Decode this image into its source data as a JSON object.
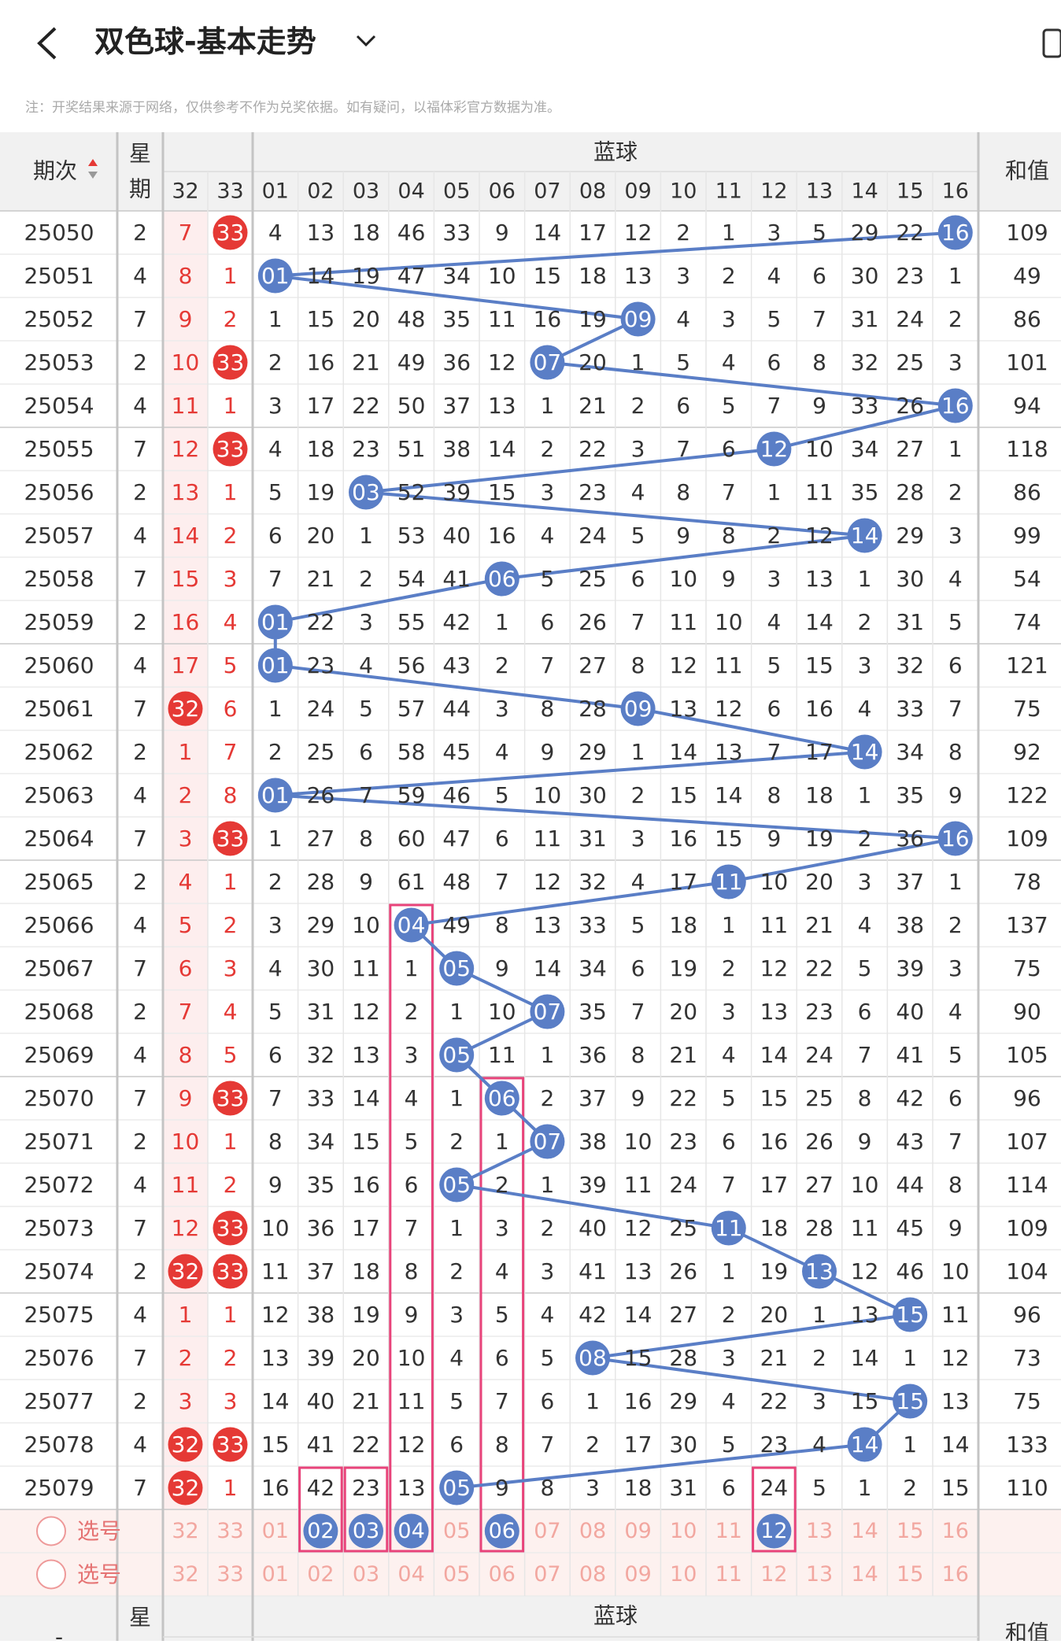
{
  "header": {
    "title": "双色球-基本走势"
  },
  "note": "注：开奖结果来源于网络，仅供参考不作为兑奖依据。如有疑问，以福体彩官方数据为准。",
  "table": {
    "columns": {
      "period": "期次",
      "week": [
        "星",
        "期"
      ],
      "red": [
        "32",
        "33"
      ],
      "blue_group": "蓝球",
      "blue": [
        "01",
        "02",
        "03",
        "04",
        "05",
        "06",
        "07",
        "08",
        "09",
        "10",
        "11",
        "12",
        "13",
        "14",
        "15",
        "16"
      ],
      "sum": "和值"
    },
    "rows": [
      {
        "period": "25050",
        "week": "2",
        "cells": [
          "7",
          "33",
          "4",
          "13",
          "18",
          "46",
          "33",
          "9",
          "14",
          "17",
          "12",
          "2",
          "1",
          "3",
          "5",
          "29",
          "22",
          "16"
        ],
        "sum": "109",
        "balls": [
          1,
          17
        ]
      },
      {
        "period": "25051",
        "week": "4",
        "cells": [
          "8",
          "1",
          "01",
          "14",
          "19",
          "47",
          "34",
          "10",
          "15",
          "18",
          "13",
          "3",
          "2",
          "4",
          "6",
          "30",
          "23",
          "1"
        ],
        "sum": "49",
        "balls": [
          2
        ]
      },
      {
        "period": "25052",
        "week": "7",
        "cells": [
          "9",
          "2",
          "1",
          "15",
          "20",
          "48",
          "35",
          "11",
          "16",
          "19",
          "09",
          "4",
          "3",
          "5",
          "7",
          "31",
          "24",
          "2"
        ],
        "sum": "86",
        "balls": [
          10
        ]
      },
      {
        "period": "25053",
        "week": "2",
        "cells": [
          "10",
          "33",
          "2",
          "16",
          "21",
          "49",
          "36",
          "12",
          "07",
          "20",
          "1",
          "5",
          "4",
          "6",
          "8",
          "32",
          "25",
          "3"
        ],
        "sum": "101",
        "balls": [
          1,
          8
        ]
      },
      {
        "period": "25054",
        "week": "4",
        "cells": [
          "11",
          "1",
          "3",
          "17",
          "22",
          "50",
          "37",
          "13",
          "1",
          "21",
          "2",
          "6",
          "5",
          "7",
          "9",
          "33",
          "26",
          "16"
        ],
        "sum": "94",
        "balls": [
          17
        ]
      },
      {
        "period": "25055",
        "week": "7",
        "cells": [
          "12",
          "33",
          "4",
          "18",
          "23",
          "51",
          "38",
          "14",
          "2",
          "22",
          "3",
          "7",
          "6",
          "12",
          "10",
          "34",
          "27",
          "1"
        ],
        "sum": "118",
        "balls": [
          1,
          13
        ]
      },
      {
        "period": "25056",
        "week": "2",
        "cells": [
          "13",
          "1",
          "5",
          "19",
          "03",
          "52",
          "39",
          "15",
          "3",
          "23",
          "4",
          "8",
          "7",
          "1",
          "11",
          "35",
          "28",
          "2"
        ],
        "sum": "86",
        "balls": [
          4
        ]
      },
      {
        "period": "25057",
        "week": "4",
        "cells": [
          "14",
          "2",
          "6",
          "20",
          "1",
          "53",
          "40",
          "16",
          "4",
          "24",
          "5",
          "9",
          "8",
          "2",
          "12",
          "14",
          "29",
          "3"
        ],
        "sum": "99",
        "balls": [
          15
        ]
      },
      {
        "period": "25058",
        "week": "7",
        "cells": [
          "15",
          "3",
          "7",
          "21",
          "2",
          "54",
          "41",
          "06",
          "5",
          "25",
          "6",
          "10",
          "9",
          "3",
          "13",
          "1",
          "30",
          "4"
        ],
        "sum": "54",
        "balls": [
          7
        ]
      },
      {
        "period": "25059",
        "week": "2",
        "cells": [
          "16",
          "4",
          "01",
          "22",
          "3",
          "55",
          "42",
          "1",
          "6",
          "26",
          "7",
          "11",
          "10",
          "4",
          "14",
          "2",
          "31",
          "5"
        ],
        "sum": "74",
        "balls": [
          2
        ]
      },
      {
        "period": "25060",
        "week": "4",
        "cells": [
          "17",
          "5",
          "01",
          "23",
          "4",
          "56",
          "43",
          "2",
          "7",
          "27",
          "8",
          "12",
          "11",
          "5",
          "15",
          "3",
          "32",
          "6"
        ],
        "sum": "121",
        "balls": [
          2
        ]
      },
      {
        "period": "25061",
        "week": "7",
        "cells": [
          "32",
          "6",
          "1",
          "24",
          "5",
          "57",
          "44",
          "3",
          "8",
          "28",
          "09",
          "13",
          "12",
          "6",
          "16",
          "4",
          "33",
          "7"
        ],
        "sum": "75",
        "balls": [
          0,
          10
        ]
      },
      {
        "period": "25062",
        "week": "2",
        "cells": [
          "1",
          "7",
          "2",
          "25",
          "6",
          "58",
          "45",
          "4",
          "9",
          "29",
          "1",
          "14",
          "13",
          "7",
          "17",
          "14",
          "34",
          "8"
        ],
        "sum": "92",
        "balls": [
          15
        ]
      },
      {
        "period": "25063",
        "week": "4",
        "cells": [
          "2",
          "8",
          "01",
          "26",
          "7",
          "59",
          "46",
          "5",
          "10",
          "30",
          "2",
          "15",
          "14",
          "8",
          "18",
          "1",
          "35",
          "9"
        ],
        "sum": "122",
        "balls": [
          2
        ]
      },
      {
        "period": "25064",
        "week": "7",
        "cells": [
          "3",
          "33",
          "1",
          "27",
          "8",
          "60",
          "47",
          "6",
          "11",
          "31",
          "3",
          "16",
          "15",
          "9",
          "19",
          "2",
          "36",
          "16"
        ],
        "sum": "109",
        "balls": [
          1,
          17
        ]
      },
      {
        "period": "25065",
        "week": "2",
        "cells": [
          "4",
          "1",
          "2",
          "28",
          "9",
          "61",
          "48",
          "7",
          "12",
          "32",
          "4",
          "17",
          "11",
          "10",
          "20",
          "3",
          "37",
          "1"
        ],
        "sum": "78",
        "balls": [
          12
        ]
      },
      {
        "period": "25066",
        "week": "4",
        "cells": [
          "5",
          "2",
          "3",
          "29",
          "10",
          "04",
          "49",
          "8",
          "13",
          "33",
          "5",
          "18",
          "1",
          "11",
          "21",
          "4",
          "38",
          "2"
        ],
        "sum": "137",
        "balls": [
          5
        ]
      },
      {
        "period": "25067",
        "week": "7",
        "cells": [
          "6",
          "3",
          "4",
          "30",
          "11",
          "1",
          "05",
          "9",
          "14",
          "34",
          "6",
          "19",
          "2",
          "12",
          "22",
          "5",
          "39",
          "3"
        ],
        "sum": "75",
        "balls": [
          6
        ]
      },
      {
        "period": "25068",
        "week": "2",
        "cells": [
          "7",
          "4",
          "5",
          "31",
          "12",
          "2",
          "1",
          "10",
          "07",
          "35",
          "7",
          "20",
          "3",
          "13",
          "23",
          "6",
          "40",
          "4"
        ],
        "sum": "90",
        "balls": [
          8
        ]
      },
      {
        "period": "25069",
        "week": "4",
        "cells": [
          "8",
          "5",
          "6",
          "32",
          "13",
          "3",
          "05",
          "11",
          "1",
          "36",
          "8",
          "21",
          "4",
          "14",
          "24",
          "7",
          "41",
          "5"
        ],
        "sum": "105",
        "balls": [
          6
        ]
      },
      {
        "period": "25070",
        "week": "7",
        "cells": [
          "9",
          "33",
          "7",
          "33",
          "14",
          "4",
          "1",
          "06",
          "2",
          "37",
          "9",
          "22",
          "5",
          "15",
          "25",
          "8",
          "42",
          "6"
        ],
        "sum": "96",
        "balls": [
          1,
          7
        ]
      },
      {
        "period": "25071",
        "week": "2",
        "cells": [
          "10",
          "1",
          "8",
          "34",
          "15",
          "5",
          "2",
          "1",
          "07",
          "38",
          "10",
          "23",
          "6",
          "16",
          "26",
          "9",
          "43",
          "7"
        ],
        "sum": "107",
        "balls": [
          8
        ]
      },
      {
        "period": "25072",
        "week": "4",
        "cells": [
          "11",
          "2",
          "9",
          "35",
          "16",
          "6",
          "05",
          "2",
          "1",
          "39",
          "11",
          "24",
          "7",
          "17",
          "27",
          "10",
          "44",
          "8"
        ],
        "sum": "114",
        "balls": [
          6
        ]
      },
      {
        "period": "25073",
        "week": "7",
        "cells": [
          "12",
          "33",
          "10",
          "36",
          "17",
          "7",
          "1",
          "3",
          "2",
          "40",
          "12",
          "25",
          "11",
          "18",
          "28",
          "11",
          "45",
          "9"
        ],
        "sum": "109",
        "balls": [
          1,
          12
        ]
      },
      {
        "period": "25074",
        "week": "2",
        "cells": [
          "32",
          "33",
          "11",
          "37",
          "18",
          "8",
          "2",
          "4",
          "3",
          "41",
          "13",
          "26",
          "1",
          "19",
          "13",
          "12",
          "46",
          "10"
        ],
        "sum": "104",
        "balls": [
          0,
          1,
          14
        ]
      },
      {
        "period": "25075",
        "week": "4",
        "cells": [
          "1",
          "1",
          "12",
          "38",
          "19",
          "9",
          "3",
          "5",
          "4",
          "42",
          "14",
          "27",
          "2",
          "20",
          "1",
          "13",
          "15",
          "11"
        ],
        "sum": "96",
        "balls": [
          16
        ]
      },
      {
        "period": "25076",
        "week": "7",
        "cells": [
          "2",
          "2",
          "13",
          "39",
          "20",
          "10",
          "4",
          "6",
          "5",
          "08",
          "15",
          "28",
          "3",
          "21",
          "2",
          "14",
          "1",
          "12"
        ],
        "sum": "73",
        "balls": [
          9
        ]
      },
      {
        "period": "25077",
        "week": "2",
        "cells": [
          "3",
          "3",
          "14",
          "40",
          "21",
          "11",
          "5",
          "7",
          "6",
          "1",
          "16",
          "29",
          "4",
          "22",
          "3",
          "15",
          "15",
          "13"
        ],
        "sum": "75",
        "balls": [
          16
        ]
      },
      {
        "period": "25078",
        "week": "4",
        "cells": [
          "32",
          "33",
          "15",
          "41",
          "22",
          "12",
          "6",
          "8",
          "7",
          "2",
          "17",
          "30",
          "5",
          "23",
          "4",
          "14",
          "1",
          "14"
        ],
        "sum": "133",
        "balls": [
          0,
          1,
          15
        ]
      },
      {
        "period": "25079",
        "week": "7",
        "cells": [
          "32",
          "1",
          "16",
          "42",
          "23",
          "13",
          "05",
          "9",
          "8",
          "3",
          "18",
          "31",
          "6",
          "24",
          "5",
          "1",
          "2",
          "15"
        ],
        "sum": "110",
        "balls": [
          0,
          6
        ]
      }
    ],
    "select": {
      "label": "选号",
      "rows": [
        {
          "cells": [
            "32",
            "33",
            "01",
            "02",
            "03",
            "04",
            "05",
            "06",
            "07",
            "08",
            "09",
            "10",
            "11",
            "12",
            "13",
            "14",
            "15",
            "16"
          ],
          "balls": [
            3,
            4,
            5,
            7,
            13
          ]
        },
        {
          "cells": [
            "32",
            "33",
            "01",
            "02",
            "03",
            "04",
            "05",
            "06",
            "07",
            "08",
            "09",
            "10",
            "11",
            "12",
            "13",
            "14",
            "15",
            "16"
          ],
          "balls": []
        }
      ]
    },
    "footer_header": {
      "period": "-",
      "week": "星",
      "blue_group": "蓝球",
      "sum": "和值"
    }
  }
}
